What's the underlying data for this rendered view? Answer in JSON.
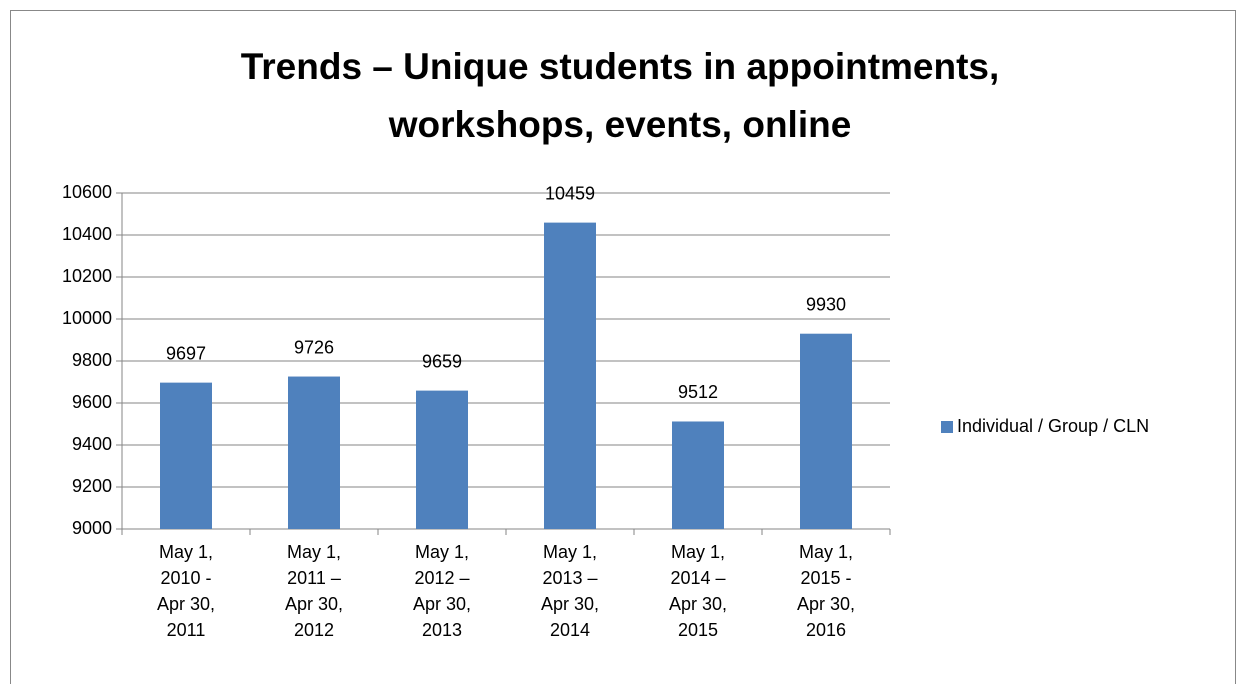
{
  "chart_data": {
    "type": "bar",
    "title": "Trends – Unique students in appointments, workshops, events, online",
    "categories": [
      "May 1, 2010 - Apr 30, 2011",
      "May 1, 2011 – Apr 30, 2012",
      "May 1, 2012 – Apr 30, 2013",
      "May 1, 2013 – Apr 30, 2014",
      "May 1, 2014 – Apr 30, 2015",
      "May 1, 2015 - Apr 30, 2016"
    ],
    "series": [
      {
        "name": "Individual / Group / CLN",
        "color": "#4f81bd",
        "values": [
          9697,
          9726,
          9659,
          10459,
          9512,
          9930
        ]
      }
    ],
    "ylim": [
      9000,
      10600
    ],
    "yticks": [
      9000,
      9200,
      9400,
      9600,
      9800,
      10000,
      10200,
      10400,
      10600
    ],
    "grid": true,
    "legend": "right"
  }
}
